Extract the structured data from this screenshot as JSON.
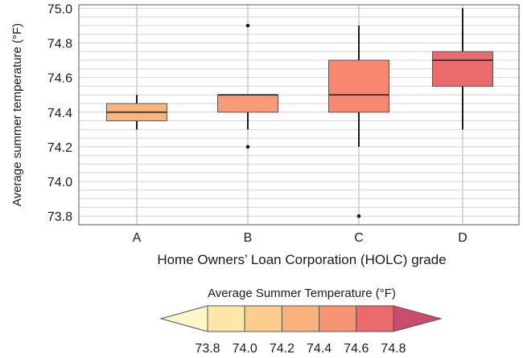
{
  "chart_data": {
    "type": "box",
    "xlabel": "Home Owners’ Loan Corporation (HOLC) grade",
    "ylabel": "Average summer temperature (°F)",
    "ylim": [
      73.75,
      75.02
    ],
    "yticks": [
      73.8,
      74.0,
      74.2,
      74.4,
      74.6,
      74.8,
      75.0
    ],
    "ytick_labels": [
      "73.8",
      "74.0",
      "74.2",
      "74.4",
      "74.6",
      "74.8",
      "75.0"
    ],
    "grid": true,
    "categories": [
      "A",
      "B",
      "C",
      "D"
    ],
    "boxes": [
      {
        "category": "A",
        "whisker_low": 74.3,
        "q1": 74.35,
        "median": 74.4,
        "q3": 74.45,
        "whisker_high": 74.5,
        "outliers": [],
        "color": "#f9b57e"
      },
      {
        "category": "B",
        "whisker_low": 74.3,
        "q1": 74.4,
        "median": 74.5,
        "q3": 74.5,
        "whisker_high": 74.5,
        "outliers": [
          74.2,
          74.9
        ],
        "color": "#f99a78"
      },
      {
        "category": "C",
        "whisker_low": 74.2,
        "q1": 74.4,
        "median": 74.5,
        "q3": 74.7,
        "whisker_high": 74.9,
        "outliers": [
          73.8
        ],
        "color": "#f7876f"
      },
      {
        "category": "D",
        "whisker_low": 74.3,
        "q1": 74.55,
        "median": 74.7,
        "q3": 74.75,
        "whisker_high": 75.0,
        "outliers": [],
        "color": "#ec6a6c"
      }
    ],
    "colorbar": {
      "title": "Average Summer Temperature (°F)",
      "tick_labels": [
        "73.8",
        "74.0",
        "74.2",
        "74.4",
        "74.6",
        "74.8"
      ],
      "under_color": "#fef6c9",
      "colors": [
        "#fde6a8",
        "#fcce8d",
        "#f9b27b",
        "#f69474",
        "#ec6a6c"
      ],
      "over_color": "#cc4c6d"
    }
  }
}
